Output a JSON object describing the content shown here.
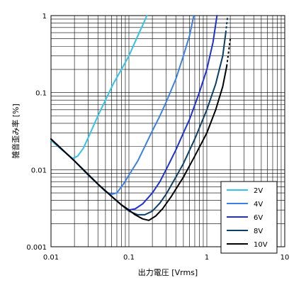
{
  "chart_data": {
    "type": "line",
    "xlabel": "出力電圧 [Vrms]",
    "ylabel": "雑音歪み率 [%]",
    "x_scale": "log",
    "y_scale": "log",
    "xlim": [
      0.01,
      10
    ],
    "ylim": [
      0.001,
      1
    ],
    "grid": true,
    "legend_position": "bottom-right",
    "x_ticks": [
      "0.01",
      "0.1",
      "1",
      "10"
    ],
    "y_ticks": [
      "1",
      "0.1",
      "0.01",
      "0.001"
    ],
    "series": [
      {
        "name": "2V",
        "color": "#33c3e8",
        "points": [
          [
            0.01,
            0.024
          ],
          [
            0.013,
            0.019
          ],
          [
            0.016,
            0.016
          ],
          [
            0.019,
            0.014
          ],
          [
            0.022,
            0.015
          ],
          [
            0.026,
            0.019
          ],
          [
            0.032,
            0.03
          ],
          [
            0.04,
            0.05
          ],
          [
            0.05,
            0.08
          ],
          [
            0.063,
            0.13
          ],
          [
            0.08,
            0.2
          ],
          [
            0.1,
            0.3
          ],
          [
            0.125,
            0.5
          ],
          [
            0.15,
            0.75
          ],
          [
            0.17,
            1.0
          ]
        ],
        "dashed_tail": []
      },
      {
        "name": "4V",
        "color": "#3a80e6",
        "points": [
          [
            0.01,
            0.025
          ],
          [
            0.02,
            0.013
          ],
          [
            0.03,
            0.0085
          ],
          [
            0.04,
            0.0065
          ],
          [
            0.05,
            0.0052
          ],
          [
            0.06,
            0.0048
          ],
          [
            0.07,
            0.005
          ],
          [
            0.085,
            0.0065
          ],
          [
            0.1,
            0.0085
          ],
          [
            0.13,
            0.013
          ],
          [
            0.16,
            0.02
          ],
          [
            0.2,
            0.032
          ],
          [
            0.25,
            0.05
          ],
          [
            0.3,
            0.075
          ],
          [
            0.4,
            0.15
          ],
          [
            0.5,
            0.3
          ],
          [
            0.6,
            0.55
          ],
          [
            0.68,
            1.0
          ]
        ],
        "dashed_tail": []
      },
      {
        "name": "6V",
        "color": "#1c30d6",
        "points": [
          [
            0.01,
            0.025
          ],
          [
            0.02,
            0.013
          ],
          [
            0.04,
            0.0065
          ],
          [
            0.06,
            0.0045
          ],
          [
            0.08,
            0.0035
          ],
          [
            0.1,
            0.003
          ],
          [
            0.12,
            0.0031
          ],
          [
            0.15,
            0.0036
          ],
          [
            0.2,
            0.005
          ],
          [
            0.25,
            0.007
          ],
          [
            0.3,
            0.01
          ],
          [
            0.4,
            0.018
          ],
          [
            0.5,
            0.03
          ],
          [
            0.6,
            0.045
          ],
          [
            0.8,
            0.1
          ],
          [
            1.0,
            0.2
          ],
          [
            1.2,
            0.45
          ],
          [
            1.35,
            1.0
          ]
        ],
        "dashed_tail": []
      },
      {
        "name": "8V",
        "color": "#0c3f66",
        "points": [
          [
            0.01,
            0.025
          ],
          [
            0.02,
            0.013
          ],
          [
            0.04,
            0.0065
          ],
          [
            0.06,
            0.0045
          ],
          [
            0.08,
            0.0035
          ],
          [
            0.1,
            0.0029
          ],
          [
            0.13,
            0.0026
          ],
          [
            0.16,
            0.0026
          ],
          [
            0.2,
            0.0029
          ],
          [
            0.25,
            0.0037
          ],
          [
            0.3,
            0.0048
          ],
          [
            0.4,
            0.008
          ],
          [
            0.5,
            0.012
          ],
          [
            0.7,
            0.025
          ],
          [
            1.0,
            0.06
          ],
          [
            1.3,
            0.13
          ],
          [
            1.6,
            0.3
          ],
          [
            1.75,
            0.6
          ]
        ],
        "dashed_tail": [
          [
            1.75,
            0.6
          ],
          [
            1.85,
            1.0
          ]
        ]
      },
      {
        "name": "10V",
        "color": "#000000",
        "points": [
          [
            0.01,
            0.025
          ],
          [
            0.02,
            0.013
          ],
          [
            0.04,
            0.0065
          ],
          [
            0.06,
            0.0045
          ],
          [
            0.08,
            0.0035
          ],
          [
            0.1,
            0.003
          ],
          [
            0.12,
            0.0026
          ],
          [
            0.15,
            0.0023
          ],
          [
            0.18,
            0.0022
          ],
          [
            0.22,
            0.0025
          ],
          [
            0.27,
            0.0031
          ],
          [
            0.35,
            0.0045
          ],
          [
            0.5,
            0.008
          ],
          [
            0.7,
            0.015
          ],
          [
            1.0,
            0.03
          ],
          [
            1.3,
            0.06
          ],
          [
            1.6,
            0.12
          ],
          [
            1.8,
            0.22
          ]
        ],
        "dashed_tail": [
          [
            1.8,
            0.22
          ],
          [
            2.0,
            0.5
          ]
        ]
      }
    ]
  }
}
